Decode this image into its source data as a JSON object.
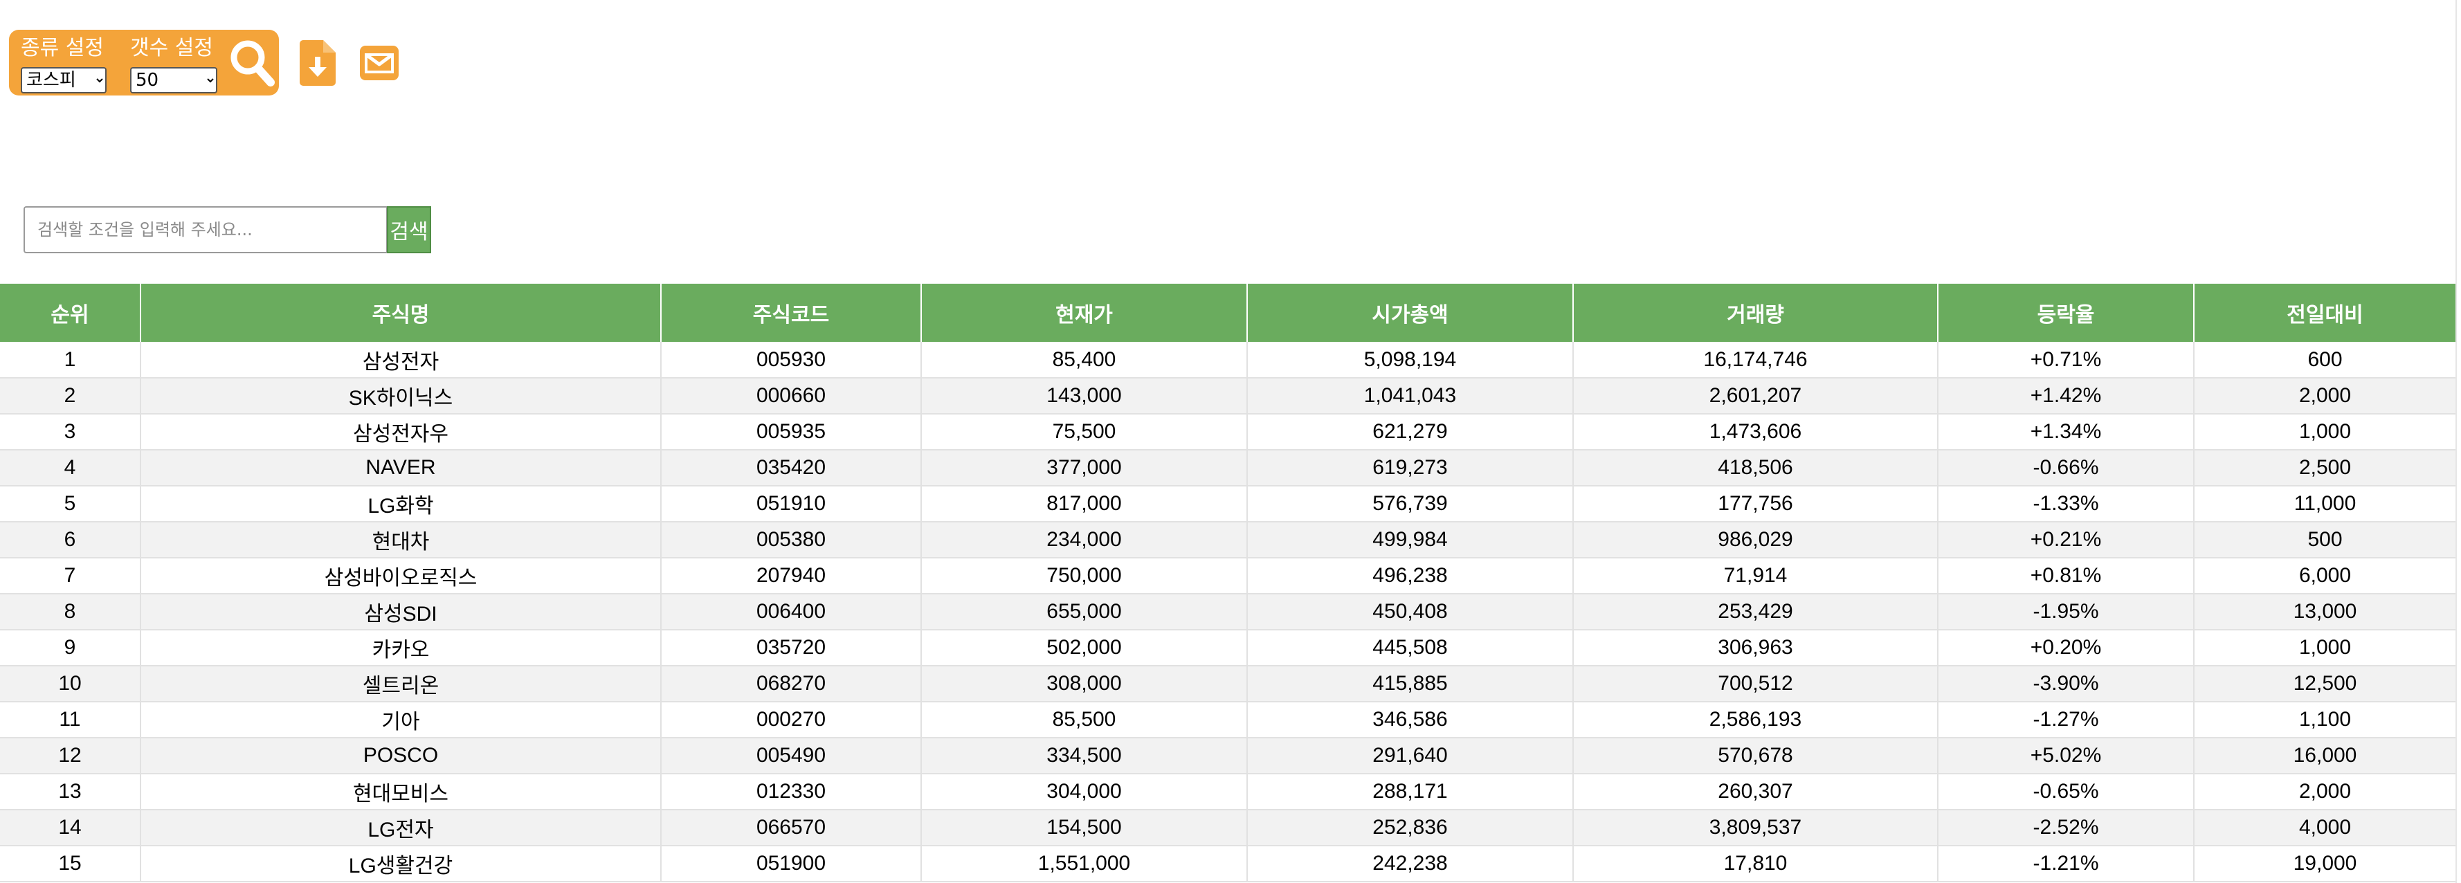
{
  "toolbar": {
    "type_label": "종류 설정",
    "type_selected": "코스피",
    "count_label": "갯수 설정",
    "count_selected": "50",
    "accent_color": "#f4a43a",
    "icons": [
      "search-icon",
      "file-download-icon",
      "envelope-icon"
    ]
  },
  "search": {
    "placeholder": "검색할 조건을 입력해 주세요...",
    "value": "",
    "button_label": "검색",
    "button_color": "#6aac5e"
  },
  "table": {
    "header_color": "#6aac5e",
    "columns": [
      "순위",
      "주식명",
      "주식코드",
      "현재가",
      "시가총액",
      "거래량",
      "등락율",
      "전일대비"
    ],
    "rows": [
      [
        "1",
        "삼성전자",
        "005930",
        "85,400",
        "5,098,194",
        "16,174,746",
        "+0.71%",
        "600"
      ],
      [
        "2",
        "SK하이닉스",
        "000660",
        "143,000",
        "1,041,043",
        "2,601,207",
        "+1.42%",
        "2,000"
      ],
      [
        "3",
        "삼성전자우",
        "005935",
        "75,500",
        "621,279",
        "1,473,606",
        "+1.34%",
        "1,000"
      ],
      [
        "4",
        "NAVER",
        "035420",
        "377,000",
        "619,273",
        "418,506",
        "-0.66%",
        "2,500"
      ],
      [
        "5",
        "LG화학",
        "051910",
        "817,000",
        "576,739",
        "177,756",
        "-1.33%",
        "11,000"
      ],
      [
        "6",
        "현대차",
        "005380",
        "234,000",
        "499,984",
        "986,029",
        "+0.21%",
        "500"
      ],
      [
        "7",
        "삼성바이오로직스",
        "207940",
        "750,000",
        "496,238",
        "71,914",
        "+0.81%",
        "6,000"
      ],
      [
        "8",
        "삼성SDI",
        "006400",
        "655,000",
        "450,408",
        "253,429",
        "-1.95%",
        "13,000"
      ],
      [
        "9",
        "카카오",
        "035720",
        "502,000",
        "445,508",
        "306,963",
        "+0.20%",
        "1,000"
      ],
      [
        "10",
        "셀트리온",
        "068270",
        "308,000",
        "415,885",
        "700,512",
        "-3.90%",
        "12,500"
      ],
      [
        "11",
        "기아",
        "000270",
        "85,500",
        "346,586",
        "2,586,193",
        "-1.27%",
        "1,100"
      ],
      [
        "12",
        "POSCO",
        "005490",
        "334,500",
        "291,640",
        "570,678",
        "+5.02%",
        "16,000"
      ],
      [
        "13",
        "현대모비스",
        "012330",
        "304,000",
        "288,171",
        "260,307",
        "-0.65%",
        "2,000"
      ],
      [
        "14",
        "LG전자",
        "066570",
        "154,500",
        "252,836",
        "3,809,537",
        "-2.52%",
        "4,000"
      ],
      [
        "15",
        "LG생활건강",
        "051900",
        "1,551,000",
        "242,238",
        "17,810",
        "-1.21%",
        "19,000"
      ]
    ]
  }
}
